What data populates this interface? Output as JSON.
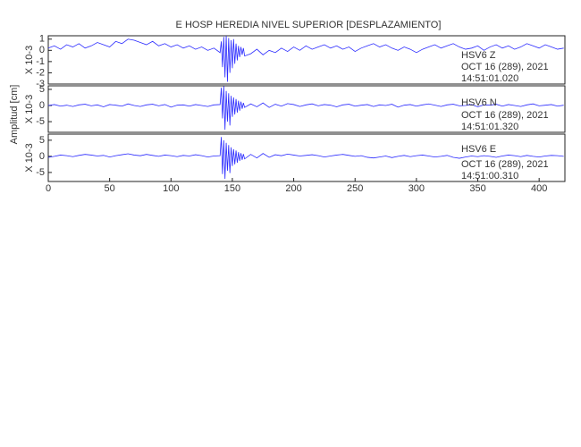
{
  "chart_data": [
    {
      "type": "line",
      "title": "E HOSP HEREDIA NIVEL SUPERIOR [DESPLAZAMIENTO]",
      "y_multiplier": "X 10-3",
      "annotations": [
        "HSV6 Z",
        "OCT 16 (289), 2021",
        "14:51:01.020"
      ],
      "xlim": [
        0,
        421
      ],
      "ylim": [
        -3,
        1.3
      ],
      "yticks": [
        1,
        0,
        -1,
        -2,
        -3
      ],
      "color": "#2a2aff",
      "x": [
        0,
        5,
        10,
        15,
        20,
        25,
        30,
        35,
        40,
        45,
        50,
        55,
        60,
        65,
        70,
        75,
        80,
        85,
        90,
        95,
        100,
        105,
        110,
        115,
        120,
        125,
        130,
        135,
        140,
        141,
        142,
        143,
        144,
        145,
        146,
        147,
        148,
        149,
        150,
        151,
        152,
        153,
        154,
        155,
        156,
        157,
        158,
        159,
        160,
        165,
        170,
        175,
        180,
        185,
        190,
        195,
        200,
        205,
        210,
        215,
        220,
        225,
        230,
        235,
        240,
        245,
        250,
        255,
        260,
        265,
        270,
        275,
        280,
        285,
        290,
        295,
        300,
        305,
        310,
        315,
        320,
        325,
        330,
        335,
        340,
        345,
        350,
        355,
        360,
        365,
        370,
        375,
        380,
        385,
        390,
        395,
        400,
        405,
        410,
        415,
        420
      ],
      "values": [
        0.2,
        0.4,
        0.1,
        0.5,
        0.3,
        0.6,
        0.2,
        0.4,
        0.7,
        0.5,
        0.3,
        0.8,
        0.6,
        1.0,
        0.9,
        0.7,
        0.5,
        0.8,
        0.4,
        0.6,
        0.3,
        0.5,
        0.2,
        0.4,
        0.1,
        0.3,
        0.0,
        0.2,
        -0.2,
        0.8,
        -1.5,
        1.2,
        -2.4,
        1.3,
        -2.8,
        1.1,
        -2.0,
        0.9,
        -1.6,
        1.0,
        -1.2,
        0.6,
        -0.9,
        0.4,
        -0.6,
        0.3,
        -0.4,
        0.2,
        -0.5,
        -0.3,
        0.1,
        -0.4,
        0.0,
        -0.2,
        0.2,
        -0.1,
        0.3,
        0.0,
        0.4,
        0.1,
        0.3,
        0.5,
        0.2,
        0.4,
        0.1,
        0.3,
        -0.1,
        0.2,
        0.4,
        0.6,
        0.3,
        0.5,
        0.2,
        0.0,
        0.3,
        0.1,
        -0.2,
        0.1,
        0.3,
        0.5,
        0.2,
        0.4,
        0.6,
        0.3,
        0.1,
        0.2,
        0.4,
        0.0,
        0.3,
        0.5,
        0.2,
        0.4,
        0.1,
        0.3,
        0.6,
        0.4,
        0.2,
        0.5,
        0.3,
        0.1,
        0.2
      ]
    },
    {
      "type": "line",
      "ylabel": "Amplitud [cm]",
      "y_multiplier": "X 10-3",
      "annotations": [
        "HSV6 N",
        "OCT 16 (289), 2021",
        "14:51:01.320"
      ],
      "xlim": [
        0,
        421
      ],
      "ylim": [
        -8.3,
        6.1
      ],
      "yticks": [
        5,
        0,
        -5
      ],
      "color": "#2a2aff",
      "x": [
        0,
        5,
        10,
        15,
        20,
        25,
        30,
        35,
        40,
        45,
        50,
        55,
        60,
        65,
        70,
        75,
        80,
        85,
        90,
        95,
        100,
        105,
        110,
        115,
        120,
        125,
        130,
        135,
        140,
        141,
        142,
        143,
        144,
        145,
        146,
        147,
        148,
        149,
        150,
        151,
        152,
        153,
        154,
        155,
        156,
        157,
        158,
        159,
        160,
        165,
        170,
        175,
        180,
        185,
        190,
        195,
        200,
        205,
        210,
        215,
        220,
        225,
        230,
        235,
        240,
        245,
        250,
        255,
        260,
        265,
        270,
        275,
        280,
        285,
        290,
        295,
        300,
        305,
        310,
        315,
        320,
        325,
        330,
        335,
        340,
        345,
        350,
        355,
        360,
        365,
        370,
        375,
        380,
        385,
        390,
        395,
        400,
        405,
        410,
        415,
        420
      ],
      "values": [
        0.0,
        0.3,
        -0.2,
        0.1,
        -0.3,
        0.2,
        0.4,
        -0.1,
        0.2,
        -0.4,
        0.3,
        0.1,
        -0.2,
        0.5,
        0.0,
        -0.3,
        0.2,
        0.4,
        -0.1,
        0.3,
        -0.5,
        0.1,
        0.2,
        -0.2,
        0.3,
        0.0,
        -0.3,
        0.2,
        0.3,
        5.5,
        -4.0,
        6.0,
        -7.5,
        4.5,
        -5.0,
        3.8,
        -6.2,
        3.0,
        -3.5,
        2.5,
        -2.8,
        2.0,
        -2.2,
        1.5,
        -1.6,
        1.2,
        -1.0,
        0.8,
        -0.6,
        0.5,
        -0.4,
        0.8,
        -0.6,
        0.4,
        -0.2,
        0.6,
        0.3,
        -0.3,
        0.2,
        0.5,
        -0.1,
        0.3,
        0.1,
        -0.4,
        0.2,
        0.4,
        -0.2,
        0.1,
        0.3,
        -0.3,
        0.2,
        0.0,
        0.4,
        -0.5,
        0.1,
        0.3,
        -0.2,
        0.2,
        0.5,
        0.1,
        -0.3,
        0.2,
        0.4,
        -0.1,
        0.0,
        0.3,
        -0.4,
        0.2,
        0.1,
        0.4,
        -0.2,
        0.3,
        0.0,
        -0.3,
        0.2,
        0.5,
        -0.1,
        0.1,
        0.3,
        -0.2,
        0.1
      ]
    },
    {
      "type": "line",
      "y_multiplier": "X 10-3",
      "annotations": [
        "HSV6 E",
        "OCT 16 (289), 2021",
        "14:51:00.310"
      ],
      "xlim": [
        0,
        421
      ],
      "xticks": [
        0,
        50,
        100,
        150,
        200,
        250,
        300,
        350,
        400
      ],
      "ylim": [
        -7.8,
        6.9
      ],
      "yticks": [
        5,
        0,
        -5
      ],
      "color": "#2a2aff",
      "x": [
        0,
        5,
        10,
        15,
        20,
        25,
        30,
        35,
        40,
        45,
        50,
        55,
        60,
        65,
        70,
        75,
        80,
        85,
        90,
        95,
        100,
        105,
        110,
        115,
        120,
        125,
        130,
        135,
        140,
        141,
        142,
        143,
        144,
        145,
        146,
        147,
        148,
        149,
        150,
        151,
        152,
        153,
        154,
        155,
        156,
        157,
        158,
        159,
        160,
        165,
        170,
        175,
        180,
        185,
        190,
        195,
        200,
        205,
        210,
        215,
        220,
        225,
        230,
        235,
        240,
        245,
        250,
        255,
        260,
        265,
        270,
        275,
        280,
        285,
        290,
        295,
        300,
        305,
        310,
        315,
        320,
        325,
        330,
        335,
        340,
        345,
        350,
        355,
        360,
        365,
        370,
        375,
        380,
        385,
        390,
        395,
        400,
        405,
        410,
        415,
        420
      ],
      "values": [
        -0.3,
        0.0,
        0.4,
        0.2,
        -0.1,
        0.3,
        0.6,
        0.4,
        0.1,
        0.3,
        -0.2,
        0.2,
        0.5,
        0.8,
        0.4,
        0.2,
        0.6,
        0.3,
        0.0,
        0.4,
        0.2,
        -0.1,
        0.3,
        0.1,
        0.5,
        0.2,
        -0.2,
        0.1,
        0.2,
        6.0,
        -5.5,
        5.0,
        -7.0,
        4.2,
        -4.5,
        3.5,
        -5.2,
        2.8,
        -3.0,
        2.2,
        -2.5,
        1.8,
        -2.0,
        1.3,
        -1.4,
        1.0,
        -1.1,
        0.7,
        -0.8,
        0.6,
        -0.5,
        0.9,
        -0.3,
        0.5,
        0.2,
        0.7,
        0.4,
        0.1,
        0.3,
        0.5,
        0.2,
        -0.2,
        0.1,
        0.4,
        0.6,
        0.3,
        0.0,
        0.2,
        -0.3,
        -0.5,
        -0.2,
        0.1,
        -0.4,
        0.0,
        0.3,
        -0.1,
        0.2,
        0.4,
        0.1,
        -0.2,
        0.0,
        0.3,
        -0.3,
        -0.6,
        -0.2,
        0.1,
        -0.1,
        0.2,
        0.0,
        -0.3,
        0.1,
        0.4,
        0.2,
        -0.1,
        0.3,
        0.0,
        -0.2,
        0.1,
        0.3,
        0.2,
        0.0
      ]
    }
  ]
}
